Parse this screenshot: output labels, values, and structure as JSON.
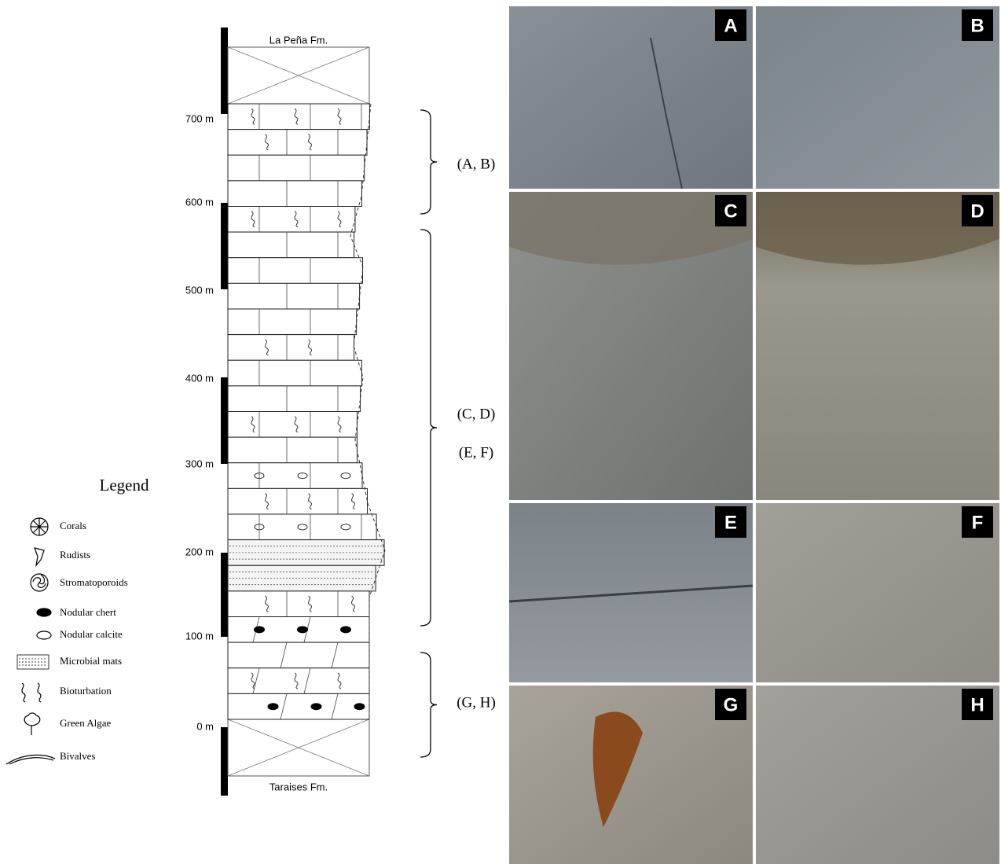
{
  "column": {
    "top_formation": "La Peña Fm.",
    "bottom_formation": "Taraises Fm.",
    "depths": [
      "700 m",
      "600 m",
      "500 m",
      "400 m",
      "300 m",
      "200 m",
      "100 m",
      "0 m"
    ]
  },
  "legend": {
    "title": "Legend",
    "items": [
      "Corals",
      "Rudists",
      "Stromatoporoids",
      "Nodular chert",
      "Nodular calcite",
      "Microbial mats",
      "Bioturbation",
      "Green Algae",
      "Bivalves"
    ]
  },
  "brackets": [
    "(A, B)",
    "(C, D)",
    "(E, F)",
    "(G, H)"
  ],
  "photos": [
    {
      "label": "A"
    },
    {
      "label": "B"
    },
    {
      "label": "C"
    },
    {
      "label": "D"
    },
    {
      "label": "E"
    },
    {
      "label": "F"
    },
    {
      "label": "G"
    },
    {
      "label": "H"
    }
  ]
}
